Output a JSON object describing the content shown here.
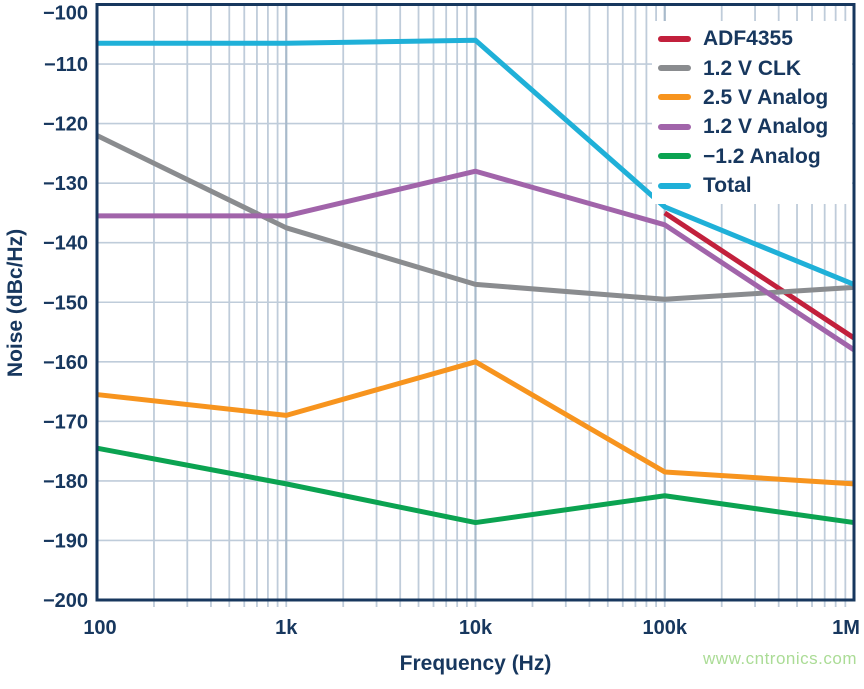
{
  "watermark": {
    "text": "www.cntronics.com",
    "color": "#abdc96"
  },
  "axis": {
    "color": "#17375e",
    "grid_minor": "#bfccda",
    "grid_major": "#a8bacb",
    "background": "#ffffff"
  },
  "chart_data": {
    "type": "line",
    "title": "",
    "xlabel": "Frequency (Hz)",
    "ylabel": "Noise (dBc/Hz)",
    "xscale": "log",
    "xlim": [
      100,
      1000000
    ],
    "ylim": [
      -200,
      -100
    ],
    "grid": "on",
    "legend_position": "top-right-inside",
    "xticks": [
      100,
      1000,
      10000,
      100000,
      1000000
    ],
    "xtick_labels": [
      "100",
      "1k",
      "10k",
      "100k",
      "1M"
    ],
    "ytick_step": 10,
    "ytick_labels": [
      "−100",
      "−110",
      "−120",
      "−130",
      "−140",
      "−150",
      "−160",
      "−170",
      "−180",
      "−190",
      "−200"
    ],
    "x": [
      100,
      1000,
      10000,
      100000,
      1000000
    ],
    "series": [
      {
        "name": "ADF4355",
        "color": "#c2203c",
        "x": [
          100000,
          1000000
        ],
        "values": [
          -135,
          -156
        ]
      },
      {
        "name": "1.2 V CLK",
        "color": "#8a8c8f",
        "x": [
          100,
          1000,
          10000,
          100000,
          1000000
        ],
        "values": [
          -122,
          -137.5,
          -147,
          -149.5,
          -147.5
        ]
      },
      {
        "name": "2.5 V Analog",
        "color": "#f7941e",
        "x": [
          100,
          1000,
          10000,
          100000,
          1000000
        ],
        "values": [
          -165.5,
          -169,
          -160,
          -178.5,
          -180.5
        ]
      },
      {
        "name": "1.2 V Analog",
        "color": "#a164aa",
        "x": [
          100,
          1000,
          10000,
          100000,
          1000000
        ],
        "values": [
          -135.5,
          -135.5,
          -128,
          -137,
          -158
        ]
      },
      {
        "name": "−1.2 Analog",
        "color": "#0ba351",
        "x": [
          100,
          1000,
          10000,
          100000,
          1000000
        ],
        "values": [
          -174.5,
          -180.5,
          -187,
          -182.5,
          -187
        ]
      },
      {
        "name": "Total",
        "color": "#1fb0d8",
        "x": [
          100,
          1000,
          10000,
          100000,
          1000000
        ],
        "values": [
          -106.5,
          -106.5,
          -106,
          -134,
          -147
        ]
      }
    ]
  }
}
